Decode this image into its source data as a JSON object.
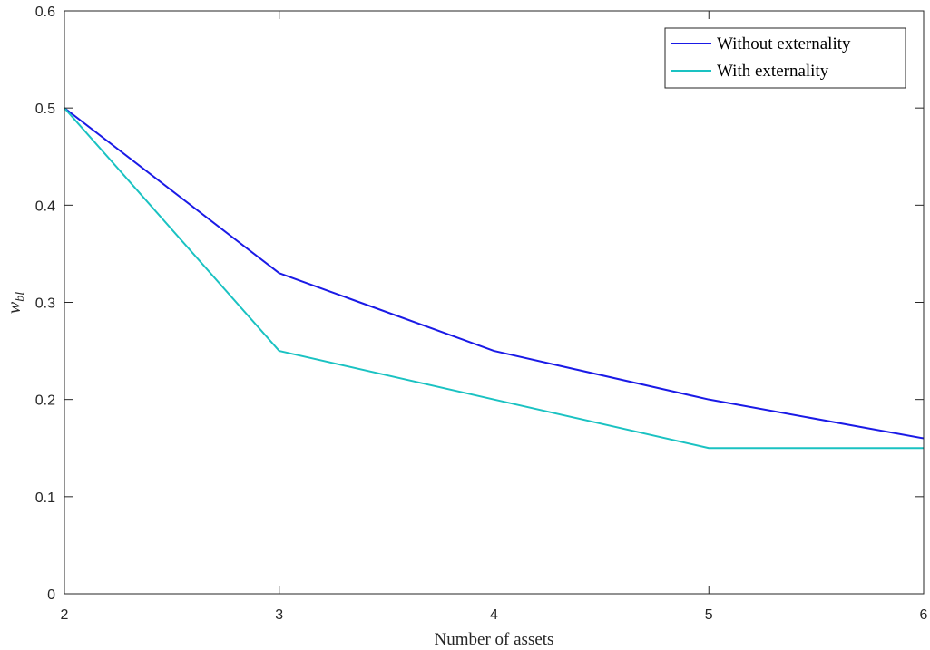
{
  "chart_data": {
    "type": "line",
    "x": [
      2,
      3,
      4,
      5,
      6
    ],
    "xticks": [
      "2",
      "3",
      "4",
      "5",
      "6"
    ],
    "yticks": [
      "0",
      "0.1",
      "0.2",
      "0.3",
      "0.4",
      "0.5",
      "0.6"
    ],
    "xlim": [
      2,
      6
    ],
    "ylim": [
      0,
      0.6
    ],
    "xlabel": "Number of assets",
    "ylabel": {
      "main": "w",
      "subscript": "bl"
    },
    "grid": false,
    "legend_position": "top-right",
    "series": [
      {
        "name": "Without externality",
        "color": "#1a1ae6",
        "values": [
          0.5,
          0.33,
          0.25,
          0.2,
          0.16
        ]
      },
      {
        "name": "With externality",
        "color": "#1ac2c2",
        "values": [
          0.5,
          0.25,
          0.2,
          0.15,
          0.15
        ]
      }
    ]
  }
}
